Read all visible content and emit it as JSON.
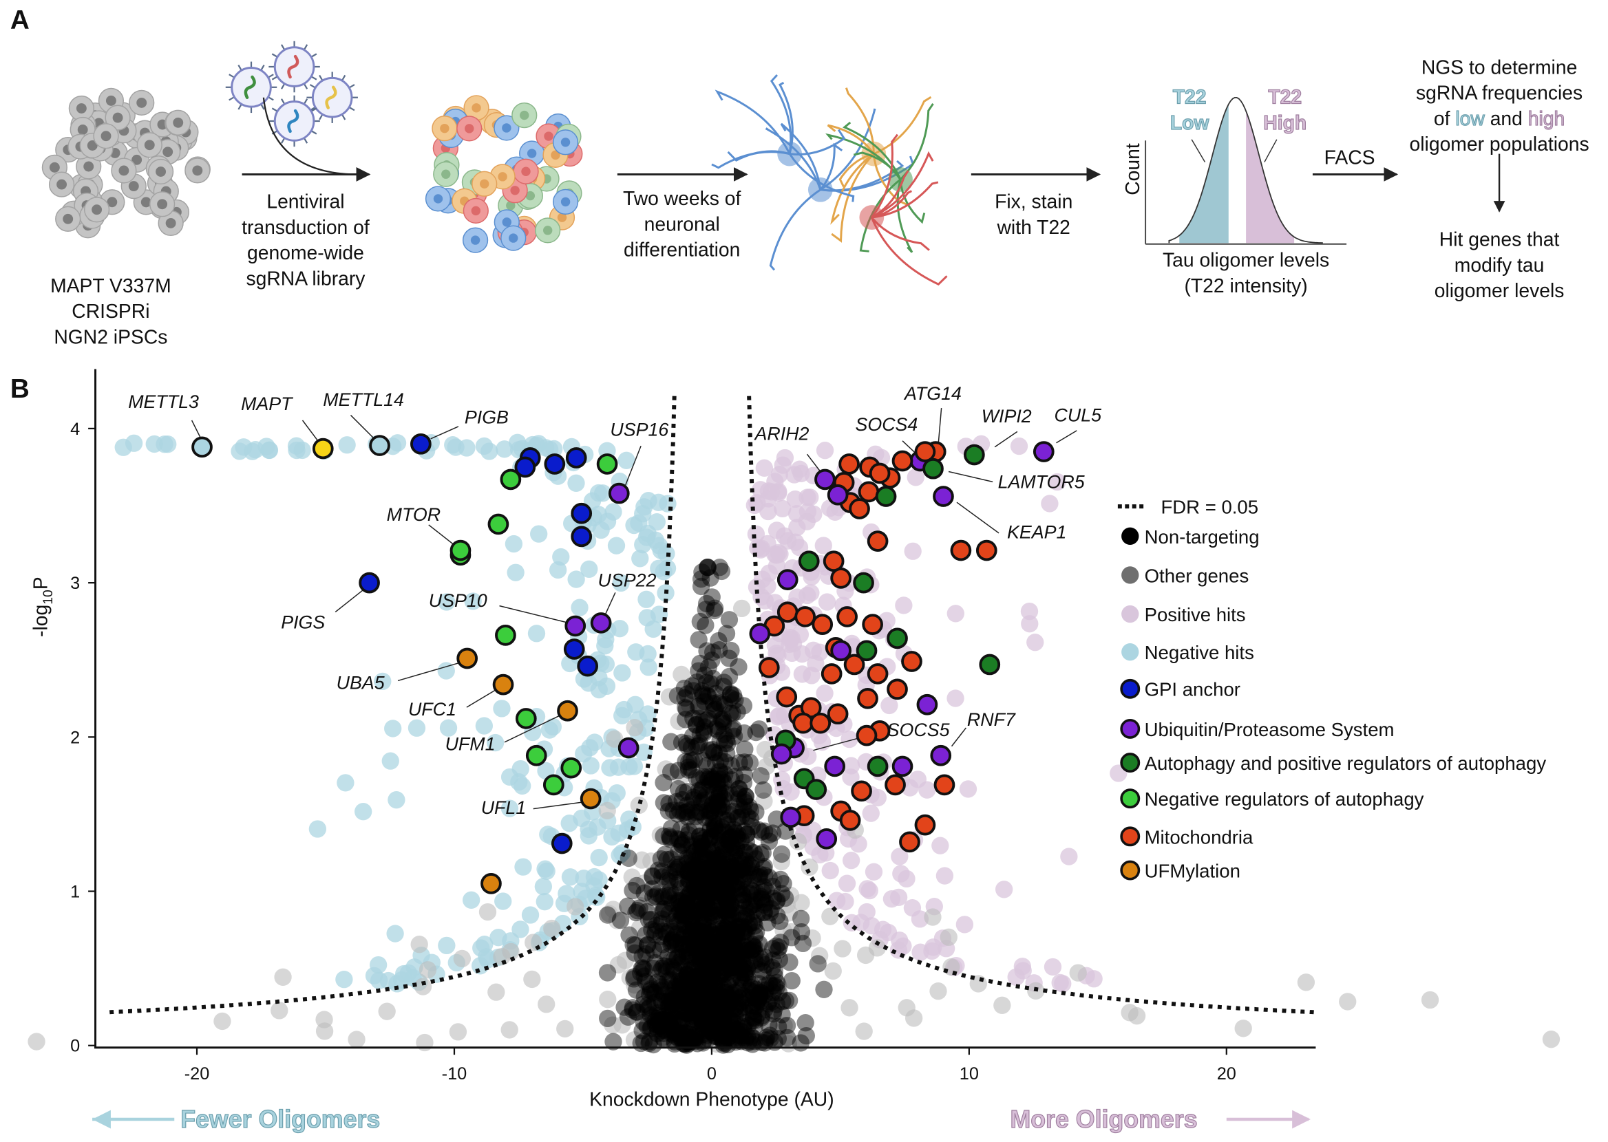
{
  "panel_a": {
    "label": "A",
    "cells_caption": [
      "MAPT V337M",
      "CRISPRi",
      "NGN2 iPSCs"
    ],
    "step1_caption": [
      "Lentiviral",
      "transduction of",
      "genome-wide",
      "sgRNA library"
    ],
    "step2_caption": [
      "Two weeks of",
      "neuronal",
      "differentiation"
    ],
    "step3_caption": [
      "Fix, stain",
      "with T22"
    ],
    "histogram": {
      "ylabel": "Count",
      "low_label": [
        "T22",
        "Low"
      ],
      "high_label": [
        "T22",
        "High"
      ],
      "xlabel": [
        "Tau oligomer levels",
        "(T22 intensity)"
      ]
    },
    "facs_label": "FACS",
    "ngs_caption": {
      "line1": "NGS to determine",
      "line2": "sgRNA frequencies",
      "line3_pre": "of ",
      "line3_low": "low",
      "line3_mid": " and ",
      "line3_high": "high",
      "line4": "oligomer populations"
    },
    "result_caption": [
      "Hit genes that",
      "modify tau",
      "oligomer levels"
    ]
  },
  "panel_b": {
    "label": "B",
    "direction_left": "Fewer Oligomers",
    "direction_right": "More Oligomers"
  },
  "colors": {
    "non_targeting": "#000000",
    "other_genes": "#6f6f6f",
    "positive_hits": "#d9c6dc",
    "negative_hits": "#acd5e1",
    "gpi_anchor": "#0a1ccc",
    "ubiquitin": "#7b22d4",
    "autophagy_pos": "#1b7d24",
    "autophagy_neg": "#3ccd3c",
    "mitochondria": "#e2441a",
    "ufmylation": "#d9820f",
    "mapt": "#f7d417"
  },
  "chart_data": {
    "type": "scatter",
    "subtype": "volcano",
    "xlabel": "Knockdown Phenotype (AU)",
    "ylabel": "-log10P",
    "xlim": [
      -24,
      23.5
    ],
    "ylim": [
      0,
      4.4
    ],
    "xticks": [
      -20,
      -10,
      0,
      10,
      20
    ],
    "yticks": [
      0,
      1,
      2,
      3,
      4
    ],
    "grid": false,
    "threshold_label": "FDR = 0.05",
    "legend_position": "right",
    "legend": [
      {
        "key": "non_targeting",
        "label": "Non-targeting",
        "outlined": false
      },
      {
        "key": "other_genes",
        "label": "Other genes",
        "outlined": false
      },
      {
        "key": "positive_hits",
        "label": "Positive hits",
        "outlined": false
      },
      {
        "key": "negative_hits",
        "label": "Negative hits",
        "outlined": false
      },
      {
        "key": "gpi_anchor",
        "label": "GPI anchor",
        "outlined": true
      },
      {
        "key": "ubiquitin",
        "label": "Ubiquitin/Proteasome System",
        "outlined": true
      },
      {
        "key": "autophagy_pos",
        "label": "Autophagy and positive regulators of autophagy",
        "outlined": true
      },
      {
        "key": "autophagy_neg",
        "label": "Negative regulators of autophagy",
        "outlined": true
      },
      {
        "key": "mitochondria",
        "label": "Mitochondria",
        "outlined": true
      },
      {
        "key": "ufmylation",
        "label": "UFMylation",
        "outlined": true
      }
    ],
    "highlighted_points": [
      {
        "gene": "METTL3",
        "category": "negative_hits",
        "x": -19.8,
        "y": 3.88
      },
      {
        "gene": "MAPT",
        "category": "mapt",
        "x": -15.1,
        "y": 3.87
      },
      {
        "gene": "METTL14",
        "category": "negative_hits",
        "x": -12.9,
        "y": 3.89
      },
      {
        "gene": "PIGB",
        "category": "gpi_anchor",
        "x": -11.3,
        "y": 3.9
      },
      {
        "gene": "PIGS",
        "category": "gpi_anchor",
        "x": -13.3,
        "y": 3.0
      },
      {
        "gene": "MTOR",
        "category": "autophagy_neg",
        "x": -9.76,
        "y": 3.18
      },
      {
        "gene": "USP16",
        "category": "ubiquitin",
        "x": -3.6,
        "y": 3.58
      },
      {
        "gene": "USP10",
        "category": "ubiquitin",
        "x": -5.3,
        "y": 2.72
      },
      {
        "gene": "USP22",
        "category": "ubiquitin",
        "x": -4.3,
        "y": 2.74
      },
      {
        "gene": "UBA5",
        "category": "ufmylation",
        "x": -9.5,
        "y": 2.51
      },
      {
        "gene": "UFC1",
        "category": "ufmylation",
        "x": -8.1,
        "y": 2.34
      },
      {
        "gene": "UFM1",
        "category": "ufmylation",
        "x": -5.6,
        "y": 2.17
      },
      {
        "gene": "UFL1",
        "category": "ufmylation",
        "x": -4.7,
        "y": 1.6
      },
      {
        "gene": "ARIH2",
        "category": "ubiquitin",
        "x": 4.4,
        "y": 3.67
      },
      {
        "gene": "SOCS4",
        "category": "ubiquitin",
        "x": 8.1,
        "y": 3.79
      },
      {
        "gene": "ATG14",
        "category": "mitochondria",
        "x": 8.7,
        "y": 3.85
      },
      {
        "gene": "WIPI2",
        "category": "autophagy_pos",
        "x": 10.2,
        "y": 3.83
      },
      {
        "gene": "CUL5",
        "category": "ubiquitin",
        "x": 12.9,
        "y": 3.85
      },
      {
        "gene": "LAMTOR5",
        "category": "autophagy_pos",
        "x": 8.6,
        "y": 3.74
      },
      {
        "gene": "KEAP1",
        "category": "ubiquitin",
        "x": 9.0,
        "y": 3.56
      },
      {
        "gene": "SOCS5",
        "category": "ubiquitin",
        "x": 3.2,
        "y": 1.93
      },
      {
        "gene": "RNF7",
        "category": "ubiquitin",
        "x": 8.9,
        "y": 1.88
      },
      {
        "category": "gpi_anchor",
        "x": -7.05,
        "y": 3.81
      },
      {
        "category": "gpi_anchor",
        "x": -7.25,
        "y": 3.75
      },
      {
        "category": "gpi_anchor",
        "x": -6.1,
        "y": 3.77
      },
      {
        "category": "gpi_anchor",
        "x": -5.26,
        "y": 3.81
      },
      {
        "category": "gpi_anchor",
        "x": -5.06,
        "y": 3.45
      },
      {
        "category": "gpi_anchor",
        "x": -5.06,
        "y": 3.3
      },
      {
        "category": "gpi_anchor",
        "x": -5.34,
        "y": 2.57
      },
      {
        "category": "gpi_anchor",
        "x": -4.82,
        "y": 2.46
      },
      {
        "category": "gpi_anchor",
        "x": -5.82,
        "y": 1.31
      },
      {
        "category": "autophagy_neg",
        "x": -4.06,
        "y": 3.77
      },
      {
        "category": "autophagy_neg",
        "x": -7.81,
        "y": 3.67
      },
      {
        "category": "autophagy_neg",
        "x": -8.29,
        "y": 3.38
      },
      {
        "category": "autophagy_neg",
        "x": -9.76,
        "y": 3.21
      },
      {
        "category": "autophagy_neg",
        "x": -8.01,
        "y": 2.66
      },
      {
        "category": "autophagy_neg",
        "x": -7.21,
        "y": 2.12
      },
      {
        "category": "autophagy_neg",
        "x": -6.81,
        "y": 1.88
      },
      {
        "category": "autophagy_neg",
        "x": -5.46,
        "y": 1.8
      },
      {
        "category": "autophagy_neg",
        "x": -6.14,
        "y": 1.69
      },
      {
        "category": "ubiquitin",
        "x": -3.23,
        "y": 1.93
      },
      {
        "category": "ufmylation",
        "x": -8.57,
        "y": 1.05
      },
      {
        "category": "mitochondria",
        "x": 5.34,
        "y": 3.77
      },
      {
        "category": "mitochondria",
        "x": 5.14,
        "y": 3.65
      },
      {
        "category": "mitochondria",
        "x": 6.14,
        "y": 3.75
      },
      {
        "category": "mitochondria",
        "x": 6.93,
        "y": 3.68
      },
      {
        "category": "mitochondria",
        "x": 5.38,
        "y": 3.52
      },
      {
        "category": "mitochondria",
        "x": 5.74,
        "y": 3.48
      },
      {
        "category": "mitochondria",
        "x": 6.1,
        "y": 3.59
      },
      {
        "category": "mitochondria",
        "x": 6.53,
        "y": 3.71
      },
      {
        "category": "mitochondria",
        "x": 7.41,
        "y": 3.79
      },
      {
        "category": "mitochondria",
        "x": 8.29,
        "y": 3.85
      },
      {
        "category": "mitochondria",
        "x": 6.45,
        "y": 3.27
      },
      {
        "category": "mitochondria",
        "x": 9.68,
        "y": 3.21
      },
      {
        "category": "mitochondria",
        "x": 10.68,
        "y": 3.21
      },
      {
        "category": "mitochondria",
        "x": 4.74,
        "y": 3.14
      },
      {
        "category": "mitochondria",
        "x": 5.02,
        "y": 3.03
      },
      {
        "category": "mitochondria",
        "x": 2.95,
        "y": 2.81
      },
      {
        "category": "mitochondria",
        "x": 2.43,
        "y": 2.72
      },
      {
        "category": "mitochondria",
        "x": 3.63,
        "y": 2.78
      },
      {
        "category": "mitochondria",
        "x": 4.3,
        "y": 2.73
      },
      {
        "category": "mitochondria",
        "x": 5.26,
        "y": 2.78
      },
      {
        "category": "mitochondria",
        "x": 6.25,
        "y": 2.73
      },
      {
        "category": "mitochondria",
        "x": 4.82,
        "y": 2.58
      },
      {
        "category": "mitochondria",
        "x": 5.54,
        "y": 2.47
      },
      {
        "category": "mitochondria",
        "x": 4.66,
        "y": 2.41
      },
      {
        "category": "mitochondria",
        "x": 6.45,
        "y": 2.41
      },
      {
        "category": "mitochondria",
        "x": 7.77,
        "y": 2.49
      },
      {
        "category": "mitochondria",
        "x": 2.23,
        "y": 2.45
      },
      {
        "category": "mitochondria",
        "x": 2.91,
        "y": 2.26
      },
      {
        "category": "mitochondria",
        "x": 3.39,
        "y": 2.14
      },
      {
        "category": "mitochondria",
        "x": 3.86,
        "y": 2.19
      },
      {
        "category": "mitochondria",
        "x": 3.55,
        "y": 2.09
      },
      {
        "category": "mitochondria",
        "x": 4.22,
        "y": 2.09
      },
      {
        "category": "mitochondria",
        "x": 4.9,
        "y": 2.15
      },
      {
        "category": "mitochondria",
        "x": 6.06,
        "y": 2.25
      },
      {
        "category": "mitochondria",
        "x": 7.21,
        "y": 2.31
      },
      {
        "category": "mitochondria",
        "x": 6.53,
        "y": 2.04
      },
      {
        "category": "mitochondria",
        "x": 6.02,
        "y": 2.01
      },
      {
        "category": "mitochondria",
        "x": 5.82,
        "y": 1.65
      },
      {
        "category": "mitochondria",
        "x": 7.13,
        "y": 1.69
      },
      {
        "category": "mitochondria",
        "x": 9.04,
        "y": 1.69
      },
      {
        "category": "mitochondria",
        "x": 5.02,
        "y": 1.52
      },
      {
        "category": "mitochondria",
        "x": 5.38,
        "y": 1.46
      },
      {
        "category": "mitochondria",
        "x": 3.59,
        "y": 1.49
      },
      {
        "category": "mitochondria",
        "x": 8.29,
        "y": 1.43
      },
      {
        "category": "mitochondria",
        "x": 7.69,
        "y": 1.32
      },
      {
        "category": "autophagy_pos",
        "x": 6.77,
        "y": 3.56
      },
      {
        "category": "autophagy_pos",
        "x": 3.78,
        "y": 3.14
      },
      {
        "category": "autophagy_pos",
        "x": 5.9,
        "y": 3.0
      },
      {
        "category": "autophagy_pos",
        "x": 7.21,
        "y": 2.64
      },
      {
        "category": "autophagy_pos",
        "x": 6.02,
        "y": 2.56
      },
      {
        "category": "autophagy_pos",
        "x": 10.8,
        "y": 2.47
      },
      {
        "category": "autophagy_pos",
        "x": 6.45,
        "y": 1.81
      },
      {
        "category": "autophagy_pos",
        "x": 2.87,
        "y": 1.98
      },
      {
        "category": "autophagy_pos",
        "x": 3.59,
        "y": 1.73
      },
      {
        "category": "autophagy_pos",
        "x": 4.06,
        "y": 1.66
      },
      {
        "category": "ubiquitin",
        "x": 4.9,
        "y": 3.57
      },
      {
        "category": "ubiquitin",
        "x": 2.95,
        "y": 3.02
      },
      {
        "category": "ubiquitin",
        "x": 1.87,
        "y": 2.67
      },
      {
        "category": "ubiquitin",
        "x": 5.02,
        "y": 2.56
      },
      {
        "category": "ubiquitin",
        "x": 8.37,
        "y": 2.21
      },
      {
        "category": "ubiquitin",
        "x": 2.71,
        "y": 1.89
      },
      {
        "category": "ubiquitin",
        "x": 4.78,
        "y": 1.81
      },
      {
        "category": "ubiquitin",
        "x": 7.41,
        "y": 1.81
      },
      {
        "category": "ubiquitin",
        "x": 3.07,
        "y": 1.48
      },
      {
        "category": "ubiquitin",
        "x": 4.46,
        "y": 1.34
      }
    ]
  }
}
